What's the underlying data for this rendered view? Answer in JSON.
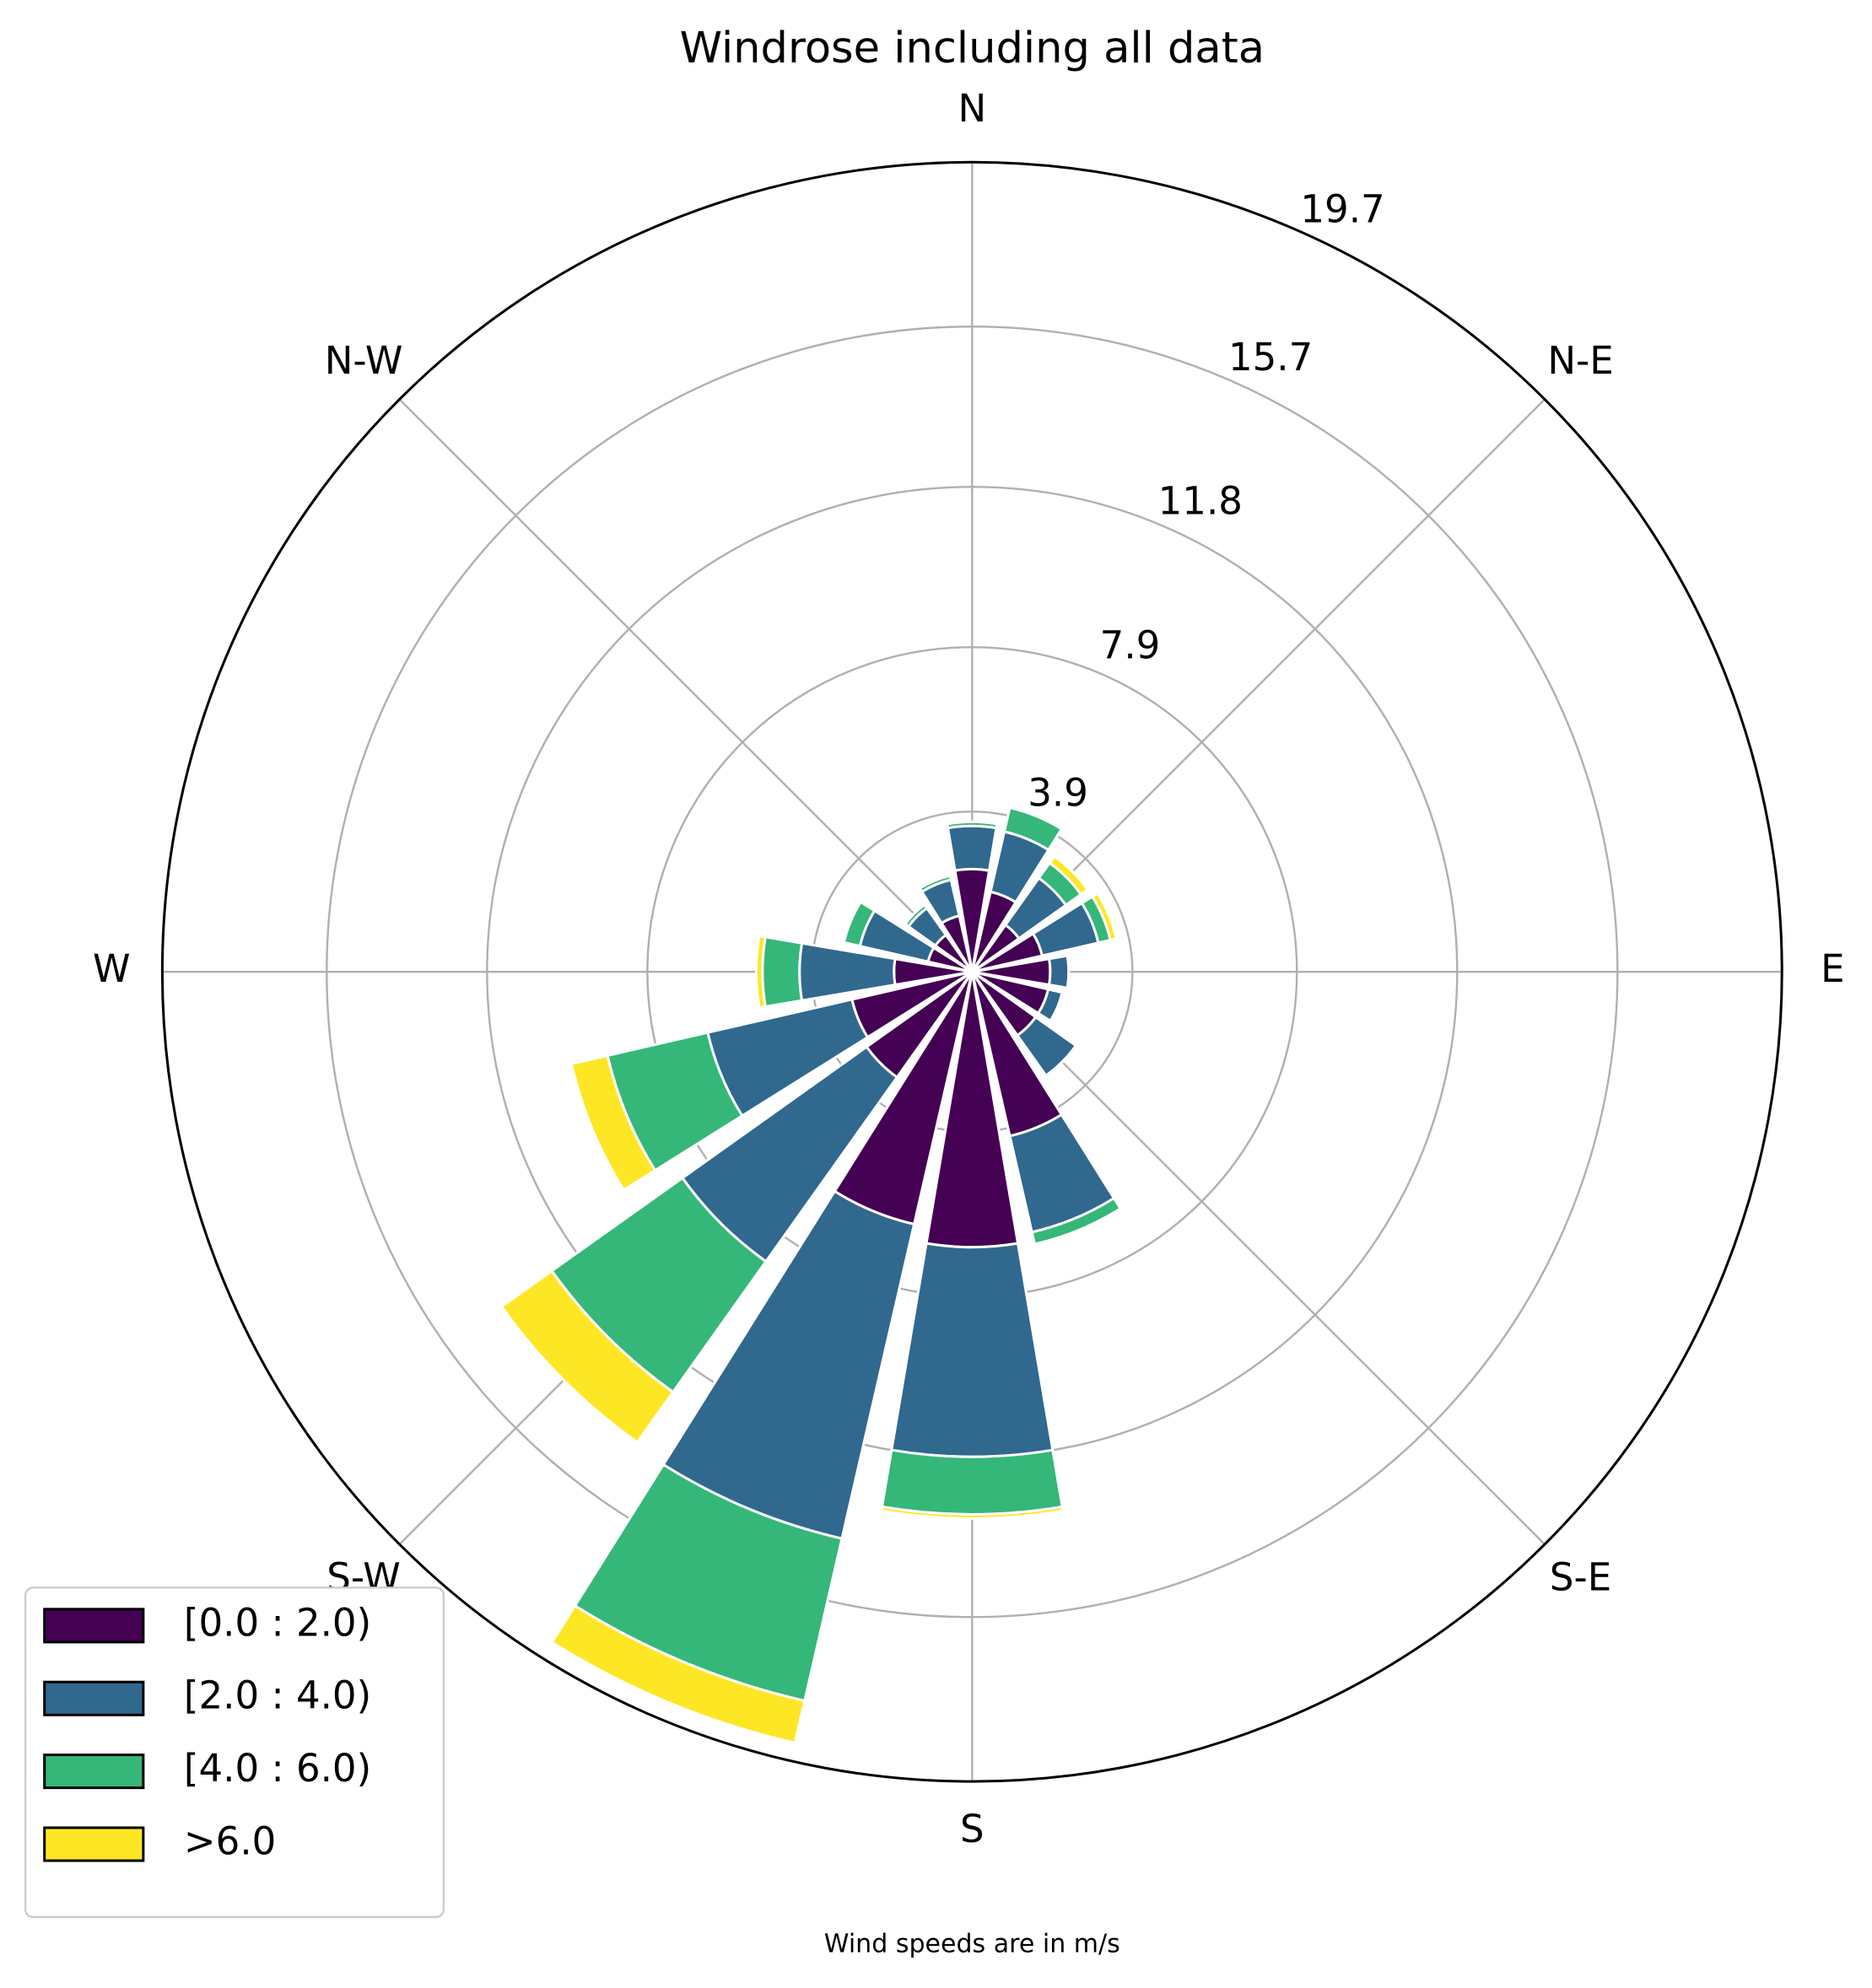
{
  "chart_data": {
    "type": "windrose",
    "title": "Windrose including all data",
    "subtitle": "Wind speeds are in m/s",
    "categories": [
      "N",
      null,
      "N-E",
      null,
      "E",
      null,
      "S-E",
      null,
      "S",
      null,
      "S-W",
      null,
      "W",
      null,
      "N-W",
      null
    ],
    "series": [
      {
        "name": "[0.0 : 2.0)",
        "color": "#440154",
        "values": [
          2.5,
          2.0,
          1.4,
          1.75,
          1.9,
          1.9,
          1.9,
          4.1,
          6.7,
          6.3,
          3.15,
          3.0,
          1.9,
          1.1,
          1.1,
          1.4
        ]
      },
      {
        "name": "[2.0 : 4.0)",
        "color": "#31688e",
        "values": [
          1.05,
          1.5,
          1.4,
          1.4,
          0.45,
          0.35,
          1.2,
          2.4,
          5.1,
          7.85,
          5.5,
          3.6,
          2.3,
          1.7,
          0.8,
          0.9
        ]
      },
      {
        "name": "[4.0 : 6.0)",
        "color": "#35b779",
        "values": [
          0.1,
          0.6,
          0.45,
          0.3,
          0,
          0,
          0,
          0.3,
          1.4,
          4.05,
          3.9,
          2.5,
          0.9,
          0.4,
          0.1,
          0.1
        ]
      },
      {
        "name": ">6.0",
        "color": "#fde725",
        "values": [
          0,
          0,
          0.2,
          0.15,
          0,
          0,
          0,
          0,
          0.1,
          1.05,
          1.5,
          0.9,
          0.15,
          0,
          0,
          0
        ]
      }
    ],
    "ylim": [
      0,
      19.7
    ],
    "yticks": [
      3.9,
      7.9,
      11.8,
      15.7,
      19.7
    ],
    "grid": true,
    "legend": "lower left"
  }
}
